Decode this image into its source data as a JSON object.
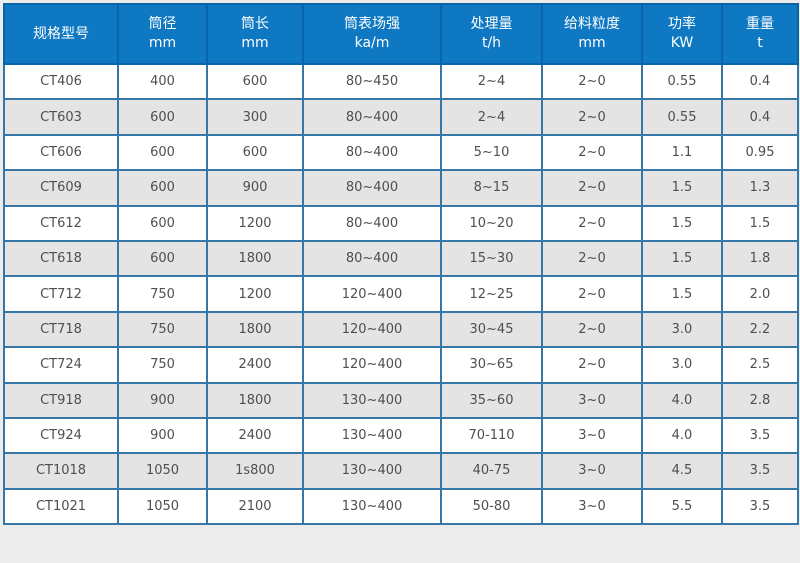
{
  "table": {
    "columns": [
      {
        "label": "规格型号",
        "unit": ""
      },
      {
        "label": "筒径",
        "unit": "mm"
      },
      {
        "label": "筒长",
        "unit": "mm"
      },
      {
        "label": "筒表场强",
        "unit": "ka/m"
      },
      {
        "label": "处理量",
        "unit": "t/h"
      },
      {
        "label": "给料粒度",
        "unit": "mm"
      },
      {
        "label": "功率",
        "unit": "KW"
      },
      {
        "label": "重量",
        "unit": "t"
      }
    ],
    "rows": [
      [
        "CT406",
        "400",
        "600",
        "80~450",
        "2~4",
        "2~0",
        "0.55",
        "0.4"
      ],
      [
        "CT603",
        "600",
        "300",
        "80~400",
        "2~4",
        "2~0",
        "0.55",
        "0.4"
      ],
      [
        "CT606",
        "600",
        "600",
        "80~400",
        "5~10",
        "2~0",
        "1.1",
        "0.95"
      ],
      [
        "CT609",
        "600",
        "900",
        "80~400",
        "8~15",
        "2~0",
        "1.5",
        "1.3"
      ],
      [
        "CT612",
        "600",
        "1200",
        "80~400",
        "10~20",
        "2~0",
        "1.5",
        "1.5"
      ],
      [
        "CT618",
        "600",
        "1800",
        "80~400",
        "15~30",
        "2~0",
        "1.5",
        "1.8"
      ],
      [
        "CT712",
        "750",
        "1200",
        "120~400",
        "12~25",
        "2~0",
        "1.5",
        "2.0"
      ],
      [
        "CT718",
        "750",
        "1800",
        "120~400",
        "30~45",
        "2~0",
        "3.0",
        "2.2"
      ],
      [
        "CT724",
        "750",
        "2400",
        "120~400",
        "30~65",
        "2~0",
        "3.0",
        "2.5"
      ],
      [
        "CT918",
        "900",
        "1800",
        "130~400",
        "35~60",
        "3~0",
        "4.0",
        "2.8"
      ],
      [
        "CT924",
        "900",
        "2400",
        "130~400",
        "70-110",
        "3~0",
        "4.0",
        "3.5"
      ],
      [
        "CT1018",
        "1050",
        "1s800",
        "130~400",
        "40-75",
        "3~0",
        "4.5",
        "3.5"
      ],
      [
        "CT1021",
        "1050",
        "2100",
        "130~400",
        "50-80",
        "3~0",
        "5.5",
        "3.5"
      ]
    ]
  },
  "colors": {
    "header_bg": "#0e78c2",
    "header_text": "#ffffff",
    "header_divider": "#0a65a8",
    "cell_border": "#3578a8",
    "stripe_bg": "#e4e4e4",
    "row_bg": "#ffffff",
    "cell_text": "#4f4f4f",
    "page_bg": "#ececec"
  }
}
